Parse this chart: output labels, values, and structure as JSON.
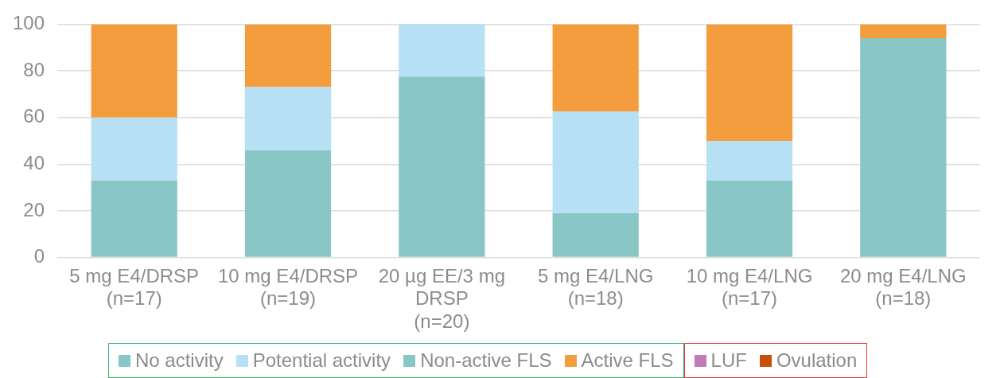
{
  "chart_data": {
    "type": "bar",
    "stacked": true,
    "categories": [
      "5 mg E4/DRSP\n(n=17)",
      "10 mg E4/DRSP\n(n=19)",
      "20 µg EE/3 mg\nDRSP\n(n=20)",
      "5 mg E4/LNG\n(n=18)",
      "10 mg E4/LNG\n(n=17)",
      "20 mg E4/LNG\n(n=18)"
    ],
    "series": [
      {
        "name": "No activity",
        "color": "#88c7c6",
        "values": [
          33,
          46,
          77.5,
          19,
          33,
          94
        ]
      },
      {
        "name": "Potential activity",
        "color": "#b8e0f4",
        "values": [
          27,
          27,
          22.5,
          43.5,
          17,
          0
        ]
      },
      {
        "name": "Non-active FLS",
        "color": "#88c7c6",
        "values": [
          0,
          0,
          0,
          0,
          0,
          0
        ]
      },
      {
        "name": "Active FLS",
        "color": "#f49d3f",
        "values": [
          40,
          27,
          0,
          37.5,
          50,
          6
        ]
      },
      {
        "name": "LUF",
        "color": "#c07ab8",
        "values": [
          0,
          0,
          0,
          0,
          0,
          0
        ]
      },
      {
        "name": "Ovulation",
        "color": "#c84f0a",
        "values": [
          0,
          0,
          0,
          0,
          0,
          0
        ]
      }
    ],
    "ylim": [
      0,
      100
    ],
    "yticks": [
      0,
      20,
      40,
      60,
      80,
      100
    ],
    "grid": "y",
    "legend": "bottom"
  }
}
